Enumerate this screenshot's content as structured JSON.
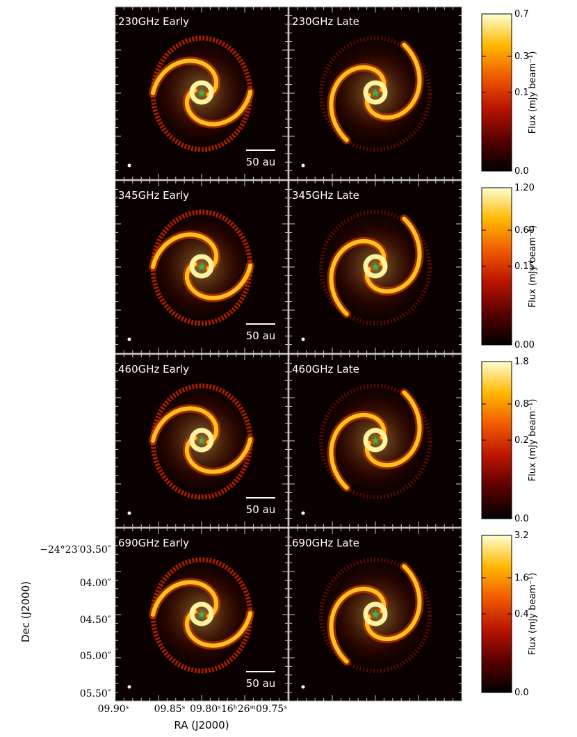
{
  "chart_data": {
    "type": "heatmap",
    "panels": [
      {
        "label": "230GHz Early",
        "scalebar": "50 au"
      },
      {
        "label": "230GHz Late",
        "scalebar": ""
      },
      {
        "label": "345GHz Early",
        "scalebar": "50 au"
      },
      {
        "label": "345GHz Late",
        "scalebar": ""
      },
      {
        "label": "460GHz Early",
        "scalebar": "50 au"
      },
      {
        "label": "460GHz Late",
        "scalebar": ""
      },
      {
        "label": "690GHz Early",
        "scalebar": "50 au"
      },
      {
        "label": "690GHz Late",
        "scalebar": ""
      }
    ],
    "colorbars": [
      {
        "ticks": [
          "0.7",
          "0.3",
          "0.1",
          "0.0"
        ],
        "label": "Flux (mJy beam⁻¹)"
      },
      {
        "ticks": [
          "1.20",
          "0.60",
          "0.15",
          "0.00"
        ],
        "label": "Flux (mJy beam⁻¹)"
      },
      {
        "ticks": [
          "1.8",
          "0.8",
          "0.2",
          "0.0"
        ],
        "label": "Flux (mJy beam⁻¹)"
      },
      {
        "ticks": [
          "3.2",
          "1.6",
          "0.4",
          "0.0"
        ],
        "label": "Flux (mJy beam⁻¹)"
      }
    ],
    "colormap": [
      "#000000",
      "#5a0000",
      "#b81400",
      "#f05a00",
      "#ffb800",
      "#ffffd0"
    ],
    "star_color": "#3cb44b",
    "xlabel": "RA (J2000)",
    "ylabel": "Dec (J2000)",
    "xticks": [
      "09.90ˢ",
      "09.85ˢ",
      "09.80ˢ16ʰ26ᵐ09.75ˢ"
    ],
    "yticks": [
      "−24°23′03.50″",
      "04.00″",
      "04.50″",
      "05.00″",
      "05.50″"
    ]
  }
}
